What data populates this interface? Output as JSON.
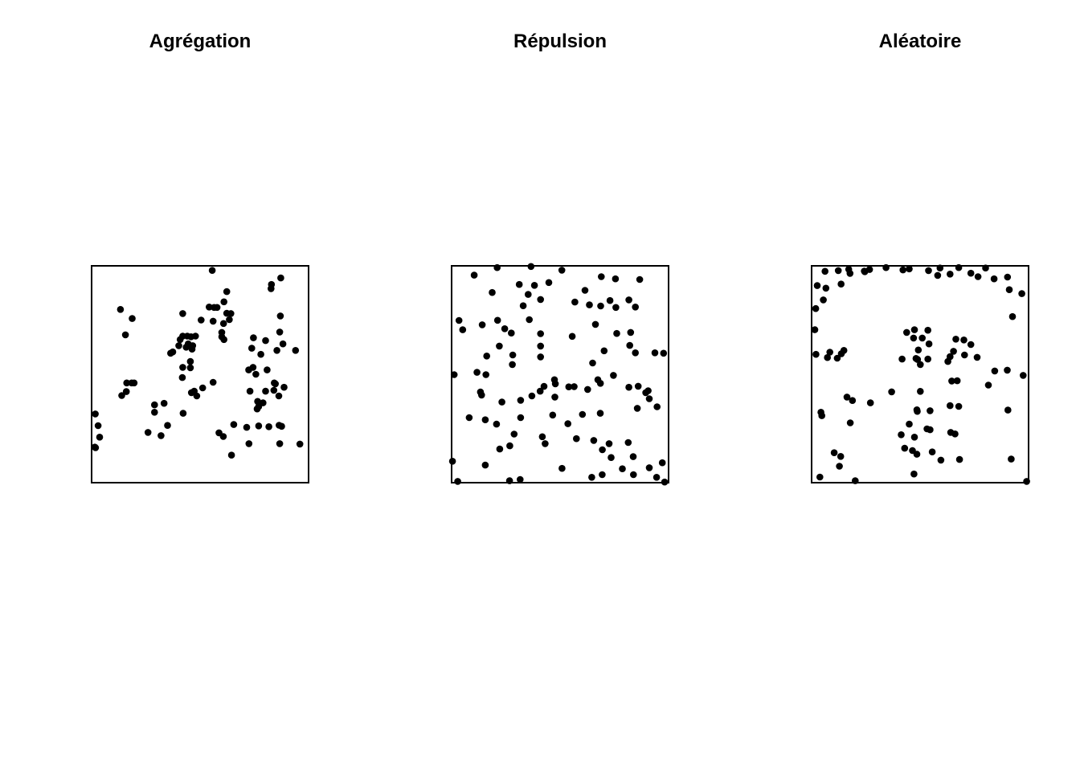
{
  "figure": {
    "titles": [
      "Agrégation",
      "Répulsion",
      "Aléatoire"
    ]
  },
  "chart_data": [
    {
      "type": "scatter",
      "title": "Agrégation",
      "xlim": [
        0,
        1
      ],
      "ylim": [
        0,
        1
      ],
      "axes": false,
      "box": true,
      "point_color": "#000000",
      "points": [
        [
          0.556,
          0.979
        ],
        [
          0.872,
          0.944
        ],
        [
          0.829,
          0.914
        ],
        [
          0.827,
          0.895
        ],
        [
          0.623,
          0.881
        ],
        [
          0.61,
          0.834
        ],
        [
          0.542,
          0.81
        ],
        [
          0.578,
          0.808
        ],
        [
          0.565,
          0.808
        ],
        [
          0.642,
          0.78
        ],
        [
          0.133,
          0.799
        ],
        [
          0.623,
          0.781
        ],
        [
          0.42,
          0.78
        ],
        [
          0.87,
          0.769
        ],
        [
          0.187,
          0.757
        ],
        [
          0.56,
          0.745
        ],
        [
          0.608,
          0.734
        ],
        [
          0.505,
          0.75
        ],
        [
          0.635,
          0.752
        ],
        [
          0.6,
          0.693
        ],
        [
          0.156,
          0.682
        ],
        [
          0.867,
          0.695
        ],
        [
          0.42,
          0.676
        ],
        [
          0.441,
          0.676
        ],
        [
          0.458,
          0.673
        ],
        [
          0.479,
          0.676
        ],
        [
          0.746,
          0.668
        ],
        [
          0.802,
          0.655
        ],
        [
          0.61,
          0.66
        ],
        [
          0.882,
          0.64
        ],
        [
          0.408,
          0.66
        ],
        [
          0.402,
          0.632
        ],
        [
          0.445,
          0.64
        ],
        [
          0.466,
          0.632
        ],
        [
          0.6,
          0.673
        ],
        [
          0.436,
          0.625
        ],
        [
          0.463,
          0.616
        ],
        [
          0.738,
          0.62
        ],
        [
          0.854,
          0.61
        ],
        [
          0.94,
          0.61
        ],
        [
          0.78,
          0.592
        ],
        [
          0.374,
          0.603
        ],
        [
          0.364,
          0.597
        ],
        [
          0.455,
          0.559
        ],
        [
          0.42,
          0.532
        ],
        [
          0.455,
          0.53
        ],
        [
          0.744,
          0.532
        ],
        [
          0.724,
          0.52
        ],
        [
          0.809,
          0.52
        ],
        [
          0.757,
          0.5
        ],
        [
          0.418,
          0.485
        ],
        [
          0.56,
          0.463
        ],
        [
          0.162,
          0.46
        ],
        [
          0.196,
          0.46
        ],
        [
          0.185,
          0.46
        ],
        [
          0.16,
          0.42
        ],
        [
          0.46,
          0.415
        ],
        [
          0.512,
          0.437
        ],
        [
          0.473,
          0.422
        ],
        [
          0.84,
          0.426
        ],
        [
          0.863,
          0.4
        ],
        [
          0.802,
          0.422
        ],
        [
          0.842,
          0.46
        ],
        [
          0.73,
          0.422
        ],
        [
          0.887,
          0.44
        ],
        [
          0.847,
          0.456
        ],
        [
          0.79,
          0.368
        ],
        [
          0.139,
          0.402
        ],
        [
          0.485,
          0.4
        ],
        [
          0.765,
          0.375
        ],
        [
          0.77,
          0.351
        ],
        [
          0.29,
          0.359
        ],
        [
          0.334,
          0.366
        ],
        [
          0.29,
          0.325
        ],
        [
          0.422,
          0.32
        ],
        [
          0.763,
          0.34
        ],
        [
          0.017,
          0.317
        ],
        [
          0.35,
          0.264
        ],
        [
          0.864,
          0.265
        ],
        [
          0.817,
          0.258
        ],
        [
          0.876,
          0.26
        ],
        [
          0.655,
          0.268
        ],
        [
          0.77,
          0.262
        ],
        [
          0.715,
          0.255
        ],
        [
          0.587,
          0.23
        ],
        [
          0.32,
          0.217
        ],
        [
          0.607,
          0.213
        ],
        [
          0.037,
          0.21
        ],
        [
          0.26,
          0.232
        ],
        [
          0.03,
          0.263
        ],
        [
          0.867,
          0.18
        ],
        [
          0.725,
          0.18
        ],
        [
          0.96,
          0.178
        ],
        [
          0.015,
          0.164
        ],
        [
          0.645,
          0.127
        ],
        [
          0.018,
          0.161
        ]
      ]
    },
    {
      "type": "scatter",
      "title": "Répulsion",
      "xlim": [
        0,
        1
      ],
      "ylim": [
        0,
        1
      ],
      "axes": false,
      "box": true,
      "point_color": "#000000",
      "points": [
        [
          0.366,
          0.997
        ],
        [
          0.21,
          0.992
        ],
        [
          0.508,
          0.98
        ],
        [
          0.104,
          0.957
        ],
        [
          0.69,
          0.95
        ],
        [
          0.755,
          0.94
        ],
        [
          0.867,
          0.937
        ],
        [
          0.448,
          0.923
        ],
        [
          0.312,
          0.914
        ],
        [
          0.382,
          0.91
        ],
        [
          0.615,
          0.887
        ],
        [
          0.187,
          0.877
        ],
        [
          0.353,
          0.868
        ],
        [
          0.817,
          0.843
        ],
        [
          0.41,
          0.845
        ],
        [
          0.73,
          0.84
        ],
        [
          0.568,
          0.833
        ],
        [
          0.635,
          0.82
        ],
        [
          0.33,
          0.816
        ],
        [
          0.757,
          0.808
        ],
        [
          0.687,
          0.815
        ],
        [
          0.847,
          0.81
        ],
        [
          0.212,
          0.749
        ],
        [
          0.358,
          0.752
        ],
        [
          0.034,
          0.748
        ],
        [
          0.141,
          0.728
        ],
        [
          0.245,
          0.71
        ],
        [
          0.663,
          0.73
        ],
        [
          0.051,
          0.705
        ],
        [
          0.275,
          0.69
        ],
        [
          0.41,
          0.687
        ],
        [
          0.825,
          0.693
        ],
        [
          0.556,
          0.675
        ],
        [
          0.761,
          0.688
        ],
        [
          0.22,
          0.63
        ],
        [
          0.41,
          0.63
        ],
        [
          0.282,
          0.589
        ],
        [
          0.821,
          0.633
        ],
        [
          0.162,
          0.584
        ],
        [
          0.703,
          0.608
        ],
        [
          0.937,
          0.599
        ],
        [
          0.41,
          0.58
        ],
        [
          0.847,
          0.599
        ],
        [
          0.977,
          0.597
        ],
        [
          0.28,
          0.545
        ],
        [
          0.117,
          0.509
        ],
        [
          0.158,
          0.498
        ],
        [
          0.012,
          0.498
        ],
        [
          0.746,
          0.495
        ],
        [
          0.65,
          0.552
        ],
        [
          0.686,
          0.458
        ],
        [
          0.674,
          0.475
        ],
        [
          0.906,
          0.424
        ],
        [
          0.895,
          0.415
        ],
        [
          0.86,
          0.445
        ],
        [
          0.817,
          0.44
        ],
        [
          0.426,
          0.444
        ],
        [
          0.478,
          0.456
        ],
        [
          0.565,
          0.443
        ],
        [
          0.474,
          0.475
        ],
        [
          0.54,
          0.442
        ],
        [
          0.627,
          0.43
        ],
        [
          0.408,
          0.422
        ],
        [
          0.476,
          0.395
        ],
        [
          0.133,
          0.418
        ],
        [
          0.138,
          0.404
        ],
        [
          0.37,
          0.4
        ],
        [
          0.318,
          0.38
        ],
        [
          0.232,
          0.372
        ],
        [
          0.947,
          0.35
        ],
        [
          0.911,
          0.387
        ],
        [
          0.856,
          0.343
        ],
        [
          0.685,
          0.32
        ],
        [
          0.466,
          0.312
        ],
        [
          0.536,
          0.272
        ],
        [
          0.603,
          0.315
        ],
        [
          0.318,
          0.3
        ],
        [
          0.081,
          0.3
        ],
        [
          0.155,
          0.29
        ],
        [
          0.207,
          0.27
        ],
        [
          0.288,
          0.224
        ],
        [
          0.418,
          0.212
        ],
        [
          0.575,
          0.203
        ],
        [
          0.655,
          0.195
        ],
        [
          0.814,
          0.185
        ],
        [
          0.726,
          0.18
        ],
        [
          0.431,
          0.18
        ],
        [
          0.268,
          0.17
        ],
        [
          0.222,
          0.155
        ],
        [
          0.695,
          0.152
        ],
        [
          0.735,
          0.116
        ],
        [
          0.837,
          0.12
        ],
        [
          0.971,
          0.092
        ],
        [
          0.911,
          0.069
        ],
        [
          0.787,
          0.064
        ],
        [
          0.509,
          0.066
        ],
        [
          0.155,
          0.081
        ],
        [
          0.004,
          0.099
        ],
        [
          0.694,
          0.037
        ],
        [
          0.838,
          0.037
        ],
        [
          0.646,
          0.025
        ],
        [
          0.945,
          0.025
        ],
        [
          0.316,
          0.015
        ],
        [
          0.028,
          0.006
        ],
        [
          0.267,
          0.009
        ],
        [
          0.982,
          0.003
        ]
      ]
    },
    {
      "type": "scatter",
      "title": "Aléatoire",
      "xlim": [
        0,
        1
      ],
      "ylim": [
        0,
        1
      ],
      "axes": false,
      "box": true,
      "point_color": "#000000",
      "points": [
        [
          0.343,
          0.992
        ],
        [
          0.678,
          0.992
        ],
        [
          0.592,
          0.99
        ],
        [
          0.171,
          0.984
        ],
        [
          0.802,
          0.99
        ],
        [
          0.267,
          0.983
        ],
        [
          0.45,
          0.986
        ],
        [
          0.539,
          0.978
        ],
        [
          0.243,
          0.976
        ],
        [
          0.062,
          0.975
        ],
        [
          0.734,
          0.966
        ],
        [
          0.421,
          0.981
        ],
        [
          0.245,
          0.973
        ],
        [
          0.123,
          0.978
        ],
        [
          0.177,
          0.965
        ],
        [
          0.638,
          0.962
        ],
        [
          0.581,
          0.956
        ],
        [
          0.767,
          0.95
        ],
        [
          0.903,
          0.948
        ],
        [
          0.841,
          0.94
        ],
        [
          0.136,
          0.916
        ],
        [
          0.026,
          0.909
        ],
        [
          0.066,
          0.897
        ],
        [
          0.911,
          0.89
        ],
        [
          0.969,
          0.872
        ],
        [
          0.054,
          0.843
        ],
        [
          0.926,
          0.766
        ],
        [
          0.474,
          0.705
        ],
        [
          0.438,
          0.693
        ],
        [
          0.536,
          0.703
        ],
        [
          0.019,
          0.803
        ],
        [
          0.015,
          0.705
        ],
        [
          0.084,
          0.602
        ],
        [
          0.149,
          0.61
        ],
        [
          0.137,
          0.595
        ],
        [
          0.118,
          0.574
        ],
        [
          0.02,
          0.592
        ],
        [
          0.073,
          0.577
        ],
        [
          0.417,
          0.57
        ],
        [
          0.481,
          0.573
        ],
        [
          0.501,
          0.545
        ],
        [
          0.536,
          0.57
        ],
        [
          0.628,
          0.559
        ],
        [
          0.654,
          0.606
        ],
        [
          0.705,
          0.589
        ],
        [
          0.763,
          0.578
        ],
        [
          0.488,
          0.568
        ],
        [
          0.541,
          0.64
        ],
        [
          0.492,
          0.612
        ],
        [
          0.702,
          0.658
        ],
        [
          0.638,
          0.581
        ],
        [
          0.47,
          0.667
        ],
        [
          0.51,
          0.667
        ],
        [
          0.665,
          0.662
        ],
        [
          0.734,
          0.637
        ],
        [
          0.844,
          0.515
        ],
        [
          0.902,
          0.519
        ],
        [
          0.975,
          0.495
        ],
        [
          0.815,
          0.45
        ],
        [
          0.646,
          0.469
        ],
        [
          0.671,
          0.47
        ],
        [
          0.501,
          0.421
        ],
        [
          0.369,
          0.419
        ],
        [
          0.163,
          0.395
        ],
        [
          0.188,
          0.379
        ],
        [
          0.271,
          0.368
        ],
        [
          0.487,
          0.329
        ],
        [
          0.546,
          0.332
        ],
        [
          0.485,
          0.336
        ],
        [
          0.638,
          0.355
        ],
        [
          0.678,
          0.352
        ],
        [
          0.905,
          0.335
        ],
        [
          0.043,
          0.325
        ],
        [
          0.047,
          0.309
        ],
        [
          0.178,
          0.276
        ],
        [
          0.45,
          0.27
        ],
        [
          0.546,
          0.244
        ],
        [
          0.532,
          0.248
        ],
        [
          0.641,
          0.232
        ],
        [
          0.661,
          0.225
        ],
        [
          0.413,
          0.221
        ],
        [
          0.474,
          0.21
        ],
        [
          0.429,
          0.159
        ],
        [
          0.465,
          0.148
        ],
        [
          0.485,
          0.131
        ],
        [
          0.556,
          0.142
        ],
        [
          0.104,
          0.138
        ],
        [
          0.134,
          0.121
        ],
        [
          0.596,
          0.104
        ],
        [
          0.682,
          0.107
        ],
        [
          0.128,
          0.076
        ],
        [
          0.92,
          0.109
        ],
        [
          0.472,
          0.04
        ],
        [
          0.038,
          0.026
        ],
        [
          0.201,
          0.009
        ],
        [
          0.991,
          0.006
        ]
      ]
    }
  ]
}
